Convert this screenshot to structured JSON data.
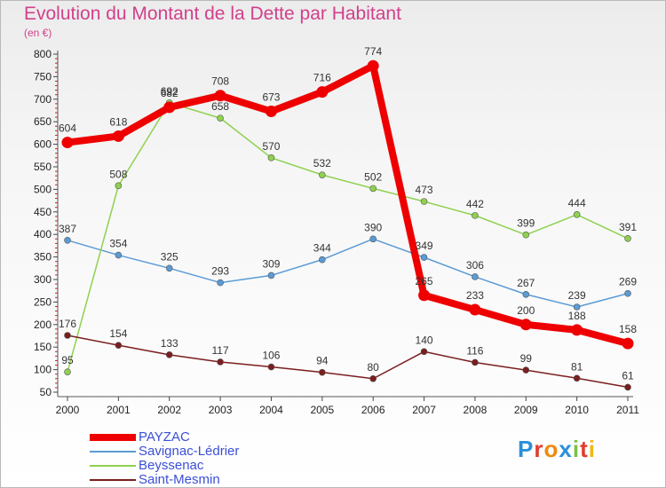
{
  "header": {
    "title": "Evolution du Montant de la Dette par Habitant",
    "subtitle": "(en €)"
  },
  "logo": {
    "text": "Proxiti",
    "letters": [
      "P",
      "r",
      "o",
      "x",
      "i",
      "t",
      "i"
    ],
    "colors": [
      "#2a8fd8",
      "#e23c2a",
      "#f08a12",
      "#2a8fd8",
      "#7cc242",
      "#e23c2a",
      "#f0b812"
    ]
  },
  "chart_data": {
    "type": "line",
    "title": "Evolution du Montant de la Dette par Habitant",
    "subtitle": "(en €)",
    "x": [
      "2000",
      "2001",
      "2002",
      "2003",
      "2004",
      "2005",
      "2006",
      "2007",
      "2008",
      "2009",
      "2010",
      "2011"
    ],
    "ylim": [
      50,
      800
    ],
    "yticks": [
      50,
      100,
      150,
      200,
      250,
      300,
      350,
      400,
      450,
      500,
      550,
      600,
      650,
      700,
      750,
      800
    ],
    "grid": false,
    "legend": "bottom-left",
    "series": [
      {
        "name": "PAYZAC",
        "color": "#ee0000",
        "values": [
          604,
          618,
          682,
          708,
          673,
          716,
          774,
          265,
          233,
          200,
          188,
          158
        ]
      },
      {
        "name": "Savignac-Lédrier",
        "color": "#5b9bd5",
        "values": [
          387,
          354,
          325,
          293,
          309,
          344,
          390,
          349,
          306,
          267,
          239,
          269
        ]
      },
      {
        "name": "Beyssenac",
        "color": "#8fd14f",
        "values": [
          95,
          508,
          692,
          658,
          570,
          532,
          502,
          473,
          442,
          399,
          444,
          391
        ]
      },
      {
        "name": "Saint-Mesmin",
        "color": "#7b1e1e",
        "values": [
          176,
          154,
          133,
          117,
          106,
          94,
          80,
          140,
          116,
          99,
          81,
          61
        ]
      }
    ]
  }
}
